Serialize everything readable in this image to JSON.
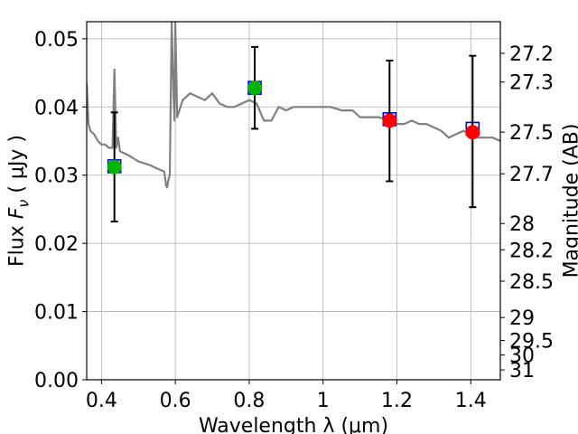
{
  "chart_data": {
    "type": "scatter",
    "title": "",
    "xlabel": "Wavelength  λ (μm)",
    "ylabel": "Flux  F_ν  ( μJy )",
    "y2label": "Magnitude (AB)",
    "xlim": [
      0.36,
      1.48
    ],
    "ylim": [
      0.0,
      0.0525
    ],
    "grid": true,
    "x_ticks": [
      0.4,
      0.6,
      0.8,
      1.0,
      1.2,
      1.4
    ],
    "x_tick_labels": [
      "0.4",
      "0.6",
      "0.8",
      "1",
      "1.2",
      "1.4"
    ],
    "y_ticks": [
      0.0,
      0.01,
      0.02,
      0.03,
      0.04,
      0.05
    ],
    "y_tick_labels": [
      "0.00",
      "0.01",
      "0.02",
      "0.03",
      "0.04",
      "0.05"
    ],
    "mag_ticks": [
      27.2,
      27.3,
      27.5,
      27.7,
      28,
      28.2,
      28.5,
      29,
      29.5,
      30,
      31
    ],
    "mag_tick_labels": [
      "27.2",
      "27.3",
      "27.5",
      "27.7",
      "28",
      "28.2",
      "28.5",
      "29",
      "29.5",
      "30",
      "31"
    ],
    "colors": {
      "spectrum": "#808080",
      "model_marker": "#0000cc",
      "green_points": "#00b400",
      "red_points": "#ff0000",
      "errorbar": "#000000",
      "grid": "#b0b0b0"
    },
    "series": [
      {
        "name": "model spectrum",
        "kind": "line",
        "x": [
          0.36,
          0.365,
          0.37,
          0.38,
          0.39,
          0.4,
          0.41,
          0.42,
          0.43,
          0.435,
          0.44,
          0.445,
          0.45,
          0.47,
          0.5,
          0.53,
          0.55,
          0.57,
          0.575,
          0.578,
          0.58,
          0.585,
          0.59,
          0.595,
          0.598,
          0.6,
          0.605,
          0.62,
          0.64,
          0.66,
          0.68,
          0.7,
          0.72,
          0.74,
          0.76,
          0.78,
          0.8,
          0.82,
          0.84,
          0.86,
          0.88,
          0.9,
          0.92,
          0.94,
          0.96,
          0.98,
          1.0,
          1.02,
          1.05,
          1.08,
          1.1,
          1.12,
          1.15,
          1.18,
          1.2,
          1.22,
          1.24,
          1.26,
          1.28,
          1.3,
          1.32,
          1.34,
          1.36,
          1.38,
          1.4,
          1.42,
          1.44,
          1.46,
          1.48
        ],
        "y": [
          0.0435,
          0.0375,
          0.0365,
          0.036,
          0.035,
          0.0345,
          0.0345,
          0.034,
          0.034,
          0.0455,
          0.034,
          0.0355,
          0.0335,
          0.033,
          0.032,
          0.0315,
          0.031,
          0.0305,
          0.0285,
          0.0282,
          0.029,
          0.03,
          0.0525,
          0.042,
          0.038,
          0.0525,
          0.0385,
          0.041,
          0.042,
          0.0415,
          0.041,
          0.042,
          0.0405,
          0.04,
          0.04,
          0.0405,
          0.041,
          0.0405,
          0.038,
          0.038,
          0.04,
          0.0395,
          0.04,
          0.04,
          0.04,
          0.04,
          0.04,
          0.04,
          0.0395,
          0.0395,
          0.0385,
          0.0385,
          0.0385,
          0.038,
          0.0375,
          0.0375,
          0.038,
          0.0375,
          0.0375,
          0.037,
          0.0365,
          0.0355,
          0.036,
          0.0365,
          0.036,
          0.0355,
          0.0355,
          0.0355,
          0.035
        ]
      },
      {
        "name": "model photometry",
        "kind": "square",
        "x": [
          0.435,
          0.815,
          1.18,
          1.405
        ],
        "y": [
          0.0313,
          0.0428,
          0.0382,
          0.0368
        ]
      },
      {
        "name": "observed (green)",
        "kind": "circle",
        "x": [
          0.435,
          0.815
        ],
        "y": [
          0.0312,
          0.0428
        ],
        "yerr_low": [
          0.0232,
          0.0368
        ],
        "yerr_high": [
          0.0392,
          0.0488
        ]
      },
      {
        "name": "observed (red)",
        "kind": "circle",
        "x": [
          1.18,
          1.405
        ],
        "y": [
          0.038,
          0.0363
        ],
        "yerr_low": [
          0.0291,
          0.0253
        ],
        "yerr_high": [
          0.0468,
          0.0475
        ]
      }
    ]
  }
}
